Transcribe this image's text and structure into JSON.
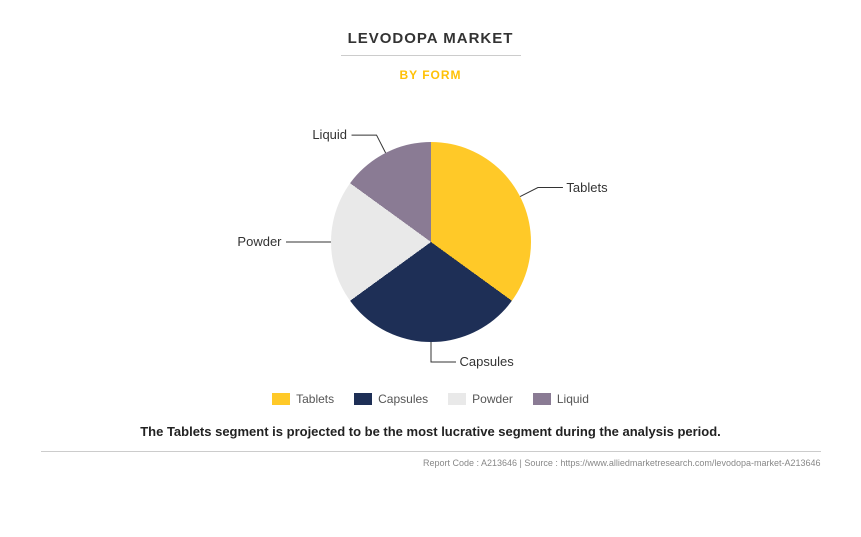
{
  "title": "LEVODOPA MARKET",
  "subtitle": "BY FORM",
  "subtitle_color": "#ffc107",
  "chart": {
    "type": "pie",
    "background_color": "#ffffff",
    "slices": [
      {
        "label": "Tablets",
        "value": 35,
        "color": "#ffc928"
      },
      {
        "label": "Capsules",
        "value": 30,
        "color": "#1e2f56"
      },
      {
        "label": "Powder",
        "value": 20,
        "color": "#e9e9e9"
      },
      {
        "label": "Liquid",
        "value": 15,
        "color": "#8a7b94"
      }
    ],
    "pie_radius": 100,
    "label_fontsize": 13,
    "label_color": "#333333",
    "leader_color": "#333333"
  },
  "legend": {
    "items": [
      {
        "label": "Tablets",
        "color": "#ffc928"
      },
      {
        "label": "Capsules",
        "color": "#1e2f56"
      },
      {
        "label": "Powder",
        "color": "#e9e9e9"
      },
      {
        "label": "Liquid",
        "color": "#8a7b94"
      }
    ],
    "fontsize": 12,
    "text_color": "#555555"
  },
  "caption": "The Tablets segment is projected to be the most lucrative segment during the analysis period.",
  "footer": "Report Code : A213646  |  Source : https://www.alliedmarketresearch.com/levodopa-market-A213646"
}
